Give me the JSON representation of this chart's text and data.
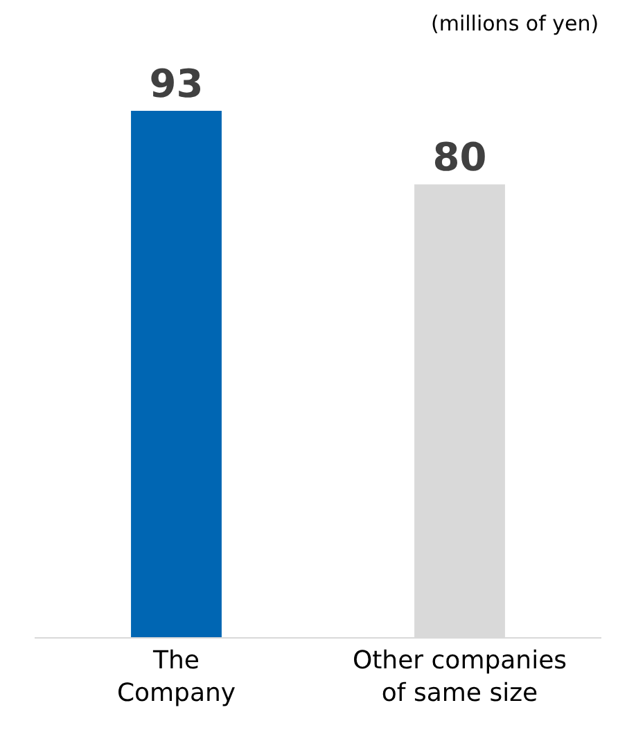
{
  "chart_data": {
    "type": "bar",
    "categories": [
      "The\nCompany",
      "Other companies\nof same size"
    ],
    "values": [
      93,
      80
    ],
    "colors": [
      "#0066b3",
      "#d9d9d9"
    ],
    "data_labels": true,
    "tick_labels": "x",
    "annotations": [
      "(millions of yen)"
    ]
  }
}
